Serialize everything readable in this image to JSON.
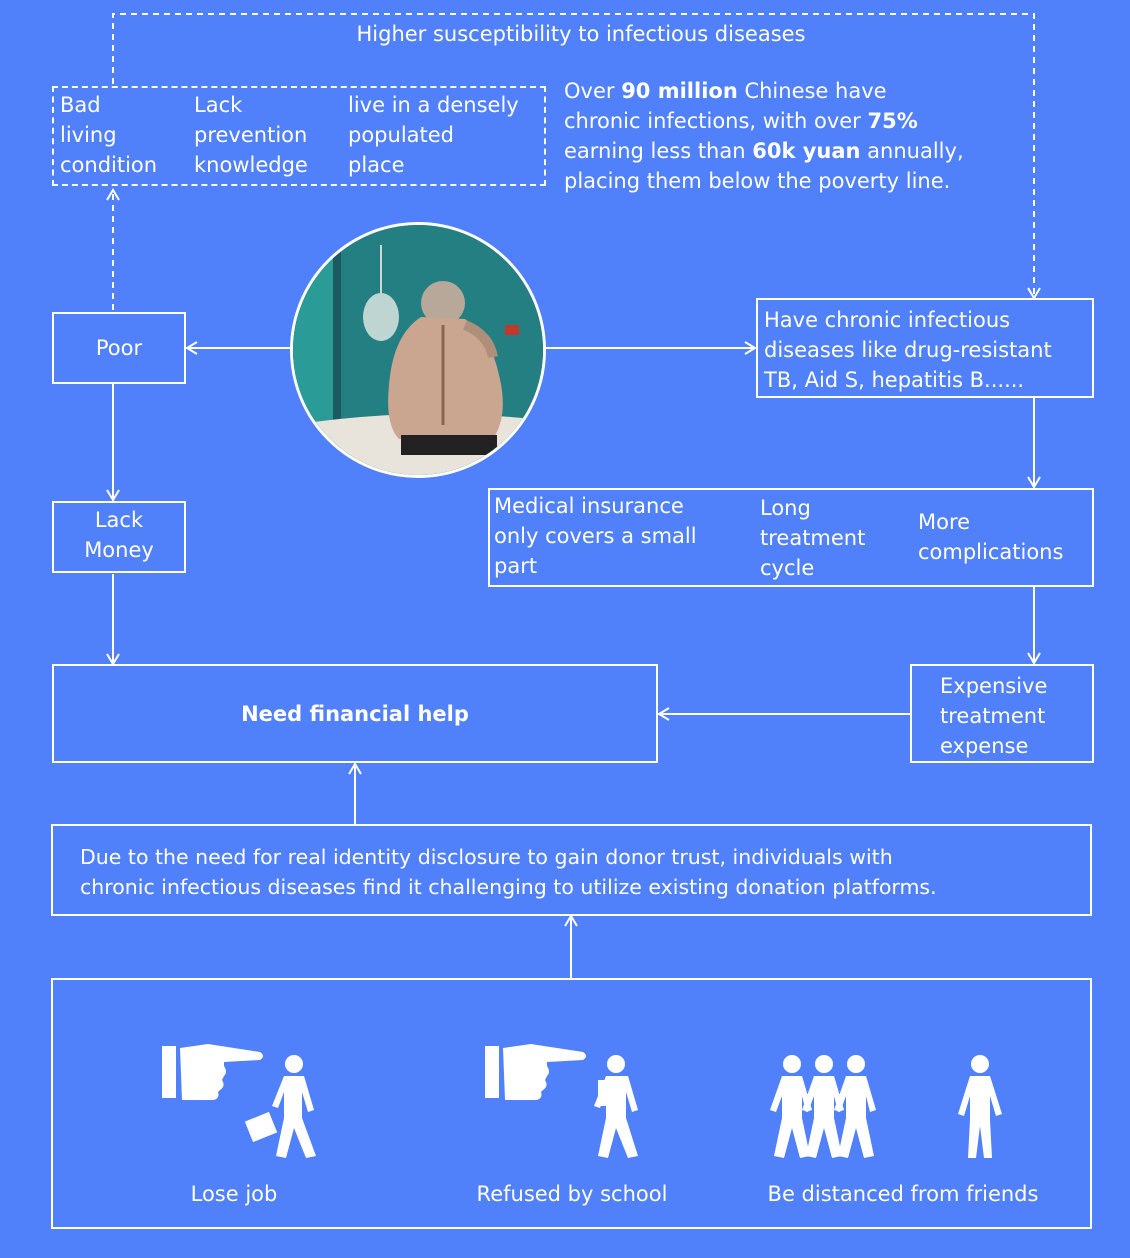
{
  "top_label": "Higher susceptibility to infectious diseases",
  "causes": {
    "bad_living": [
      "Bad",
      "living",
      "condition"
    ],
    "lack_prevention": [
      "Lack",
      "prevention",
      "knowledge"
    ],
    "dense_place": [
      "live in a densely",
      "populated",
      "place"
    ]
  },
  "stat": {
    "line1_a": "Over ",
    "line1_b": "90 million",
    "line1_c": " Chinese have",
    "line2_a": "chronic infections, with over ",
    "line2_b": "75%",
    "line3_a": "earning less than ",
    "line3_b": "60k yuan",
    "line3_c": " annually,",
    "line4": "placing them below the poverty line."
  },
  "poor": "Poor",
  "lack_money": [
    "Lack",
    "Money"
  ],
  "chronic": [
    "Have chronic infectious",
    "diseases like drug-resistant",
    "TB, Aid S, hepatitis B......"
  ],
  "factors": {
    "insurance": [
      "Medical insurance",
      "only covers a small",
      "part"
    ],
    "long_cycle": [
      "Long",
      "treatment",
      "cycle"
    ],
    "complications": [
      "More",
      "complications"
    ]
  },
  "expensive": [
    "Expensive",
    "treatment",
    "expense"
  ],
  "need_help": "Need financial help",
  "disclosure": [
    "Due to the need for real identity disclosure to gain donor trust, individuals with",
    "chronic infectious diseases find it challenging to utilize existing donation platforms."
  ],
  "discrimination": {
    "lose_job": "Lose job",
    "refused_school": "Refused by school",
    "distanced_friends": "Be distanced from friends"
  },
  "icons": {
    "photo": "patient-photo",
    "pointing": "pointing-hand-icon",
    "worker": "walking-person-with-briefcase-icon",
    "student": "walking-student-icon",
    "group": "group-of-people-icon",
    "person": "standing-person-icon"
  },
  "colors": {
    "background": "#5080fa",
    "line": "#ffffff"
  }
}
